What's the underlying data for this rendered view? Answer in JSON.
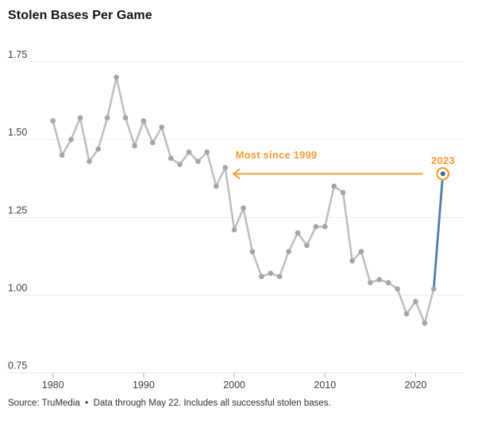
{
  "title": "Stolen Bases Per Game",
  "footer": {
    "source_note": "Source: TruMedia  •  Data through May 22. Includes all successful stolen bases."
  },
  "colors": {
    "accent_orange": "#f39c2d",
    "highlight_blue": "#4e7ca8",
    "highlight_dot_blue": "#44688e",
    "line_gray": "#bdbdbd",
    "dot_gray": "#a5a5a5",
    "grid_gray": "#ebebeb",
    "axis_line_gray": "#e2e2e2",
    "tick_gray": "#b0b0b0",
    "axis_text": "#3d3d3d",
    "title_text": "#111111"
  },
  "chart_data": {
    "type": "line",
    "title": "Stolen Bases Per Game",
    "xlabel": "",
    "ylabel": "",
    "ylim": [
      0.75,
      1.75
    ],
    "xlim": [
      1980,
      2023
    ],
    "grid": "horizontal",
    "x": [
      1980,
      1981,
      1982,
      1983,
      1984,
      1985,
      1986,
      1987,
      1988,
      1989,
      1990,
      1991,
      1992,
      1993,
      1994,
      1995,
      1996,
      1997,
      1998,
      1999,
      2000,
      2001,
      2002,
      2003,
      2004,
      2005,
      2006,
      2007,
      2008,
      2009,
      2010,
      2011,
      2012,
      2013,
      2014,
      2015,
      2016,
      2017,
      2018,
      2019,
      2020,
      2021,
      2022,
      2023
    ],
    "values": [
      1.56,
      1.45,
      1.5,
      1.57,
      1.43,
      1.47,
      1.57,
      1.7,
      1.57,
      1.48,
      1.56,
      1.49,
      1.54,
      1.44,
      1.42,
      1.46,
      1.43,
      1.46,
      1.35,
      1.41,
      1.21,
      1.28,
      1.14,
      1.06,
      1.07,
      1.06,
      1.14,
      1.2,
      1.16,
      1.22,
      1.22,
      1.35,
      1.33,
      1.11,
      1.14,
      1.04,
      1.05,
      1.04,
      1.02,
      0.94,
      0.98,
      0.91,
      1.02,
      1.39
    ],
    "yticks": [
      "1.75",
      "1.50",
      "1.25",
      "1.00",
      "0.75"
    ],
    "ytick_values": [
      1.75,
      1.5,
      1.25,
      1.0,
      0.75
    ],
    "xticks": [
      "1980",
      "1990",
      "2000",
      "2010",
      "2020"
    ],
    "xtick_values": [
      1980,
      1990,
      2000,
      2010,
      2020
    ],
    "highlight": {
      "year": 2023,
      "value": 1.39,
      "label": "2023"
    },
    "highlight_segment": {
      "from_year": 2022,
      "to_year": 2023
    },
    "annotations": [
      {
        "id": "most-since-1999",
        "text": "Most since 1999"
      },
      {
        "id": "year-2023",
        "text": "2023"
      }
    ],
    "arrow": {
      "from_year": 2020.8,
      "to_year": 1999.9,
      "at_value": 1.39
    }
  }
}
